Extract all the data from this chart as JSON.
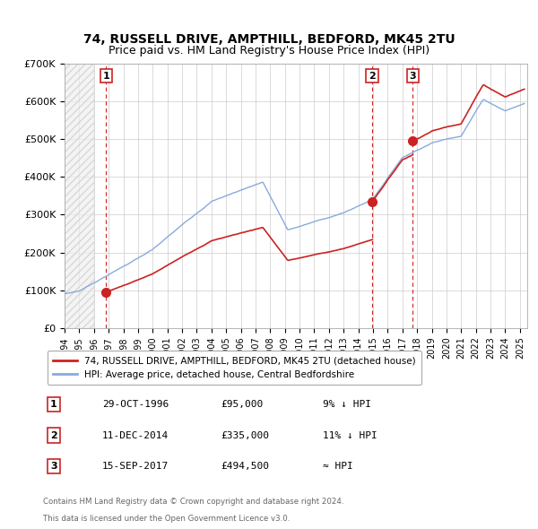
{
  "title1": "74, RUSSELL DRIVE, AMPTHILL, BEDFORD, MK45 2TU",
  "title2": "Price paid vs. HM Land Registry's House Price Index (HPI)",
  "ylim": [
    0,
    700000
  ],
  "yticks": [
    0,
    100000,
    200000,
    300000,
    400000,
    500000,
    600000,
    700000
  ],
  "ytick_labels": [
    "£0",
    "£100K",
    "£200K",
    "£300K",
    "£400K",
    "£500K",
    "£600K",
    "£700K"
  ],
  "xlim_start": 1994.0,
  "xlim_end": 2025.5,
  "sale_color": "#cc2222",
  "hpi_color": "#88aadd",
  "legend_label_sale": "74, RUSSELL DRIVE, AMPTHILL, BEDFORD, MK45 2TU (detached house)",
  "legend_label_hpi": "HPI: Average price, detached house, Central Bedfordshire",
  "transaction_dates": [
    1996.83,
    2014.94,
    2017.71
  ],
  "transaction_prices": [
    95000,
    335000,
    494500
  ],
  "transaction_labels": [
    "1",
    "2",
    "3"
  ],
  "vline_color": "#cc2222",
  "footer1": "Contains HM Land Registry data © Crown copyright and database right 2024.",
  "footer2": "This data is licensed under the Open Government Licence v3.0.",
  "table_data": [
    [
      "1",
      "29-OCT-1996",
      "£95,000",
      "9% ↓ HPI"
    ],
    [
      "2",
      "11-DEC-2014",
      "£335,000",
      "11% ↓ HPI"
    ],
    [
      "3",
      "15-SEP-2017",
      "£494,500",
      "≈ HPI"
    ]
  ],
  "hatch_start": 1994.0,
  "hatch_end": 1996.0
}
